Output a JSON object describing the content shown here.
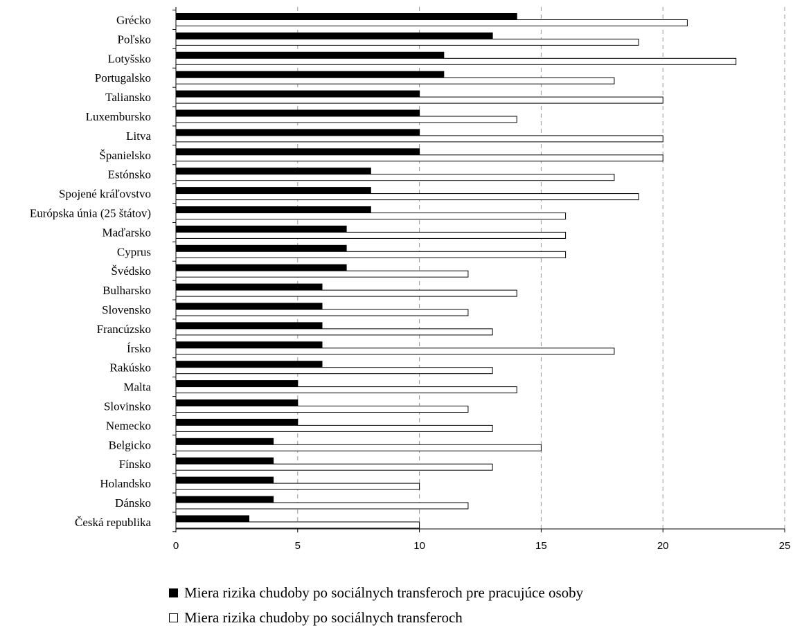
{
  "chart_data": {
    "type": "bar",
    "orientation": "horizontal",
    "categories": [
      "Grécko",
      "Poľsko",
      "Lotyšsko",
      "Portugalsko",
      "Taliansko",
      "Luxembursko",
      "Litva",
      "Španielsko",
      "Estónsko",
      "Spojené kráľovstvo",
      "Európska únia (25 štátov)",
      "Maďarsko",
      "Cyprus",
      "Švédsko",
      "Bulharsko",
      "Slovensko",
      "Francúzsko",
      "Írsko",
      "Rakúsko",
      "Malta",
      "Slovinsko",
      "Nemecko",
      "Belgicko",
      "Fínsko",
      "Holandsko",
      "Dánsko",
      "Česká republika"
    ],
    "series": [
      {
        "name": "Miera rizika chudoby po sociálnych transferoch pre pracujúce osoby",
        "color": "#000000",
        "values": [
          14,
          13,
          11,
          11,
          10,
          10,
          10,
          10,
          8,
          8,
          8,
          7,
          7,
          7,
          6,
          6,
          6,
          6,
          6,
          5,
          5,
          5,
          4,
          4,
          4,
          4,
          3
        ]
      },
      {
        "name": "Miera rizika chudoby po sociálnych transferoch",
        "color": "#ffffff",
        "values": [
          21,
          19,
          23,
          18,
          20,
          14,
          20,
          20,
          18,
          19,
          16,
          16,
          16,
          12,
          14,
          12,
          13,
          18,
          13,
          14,
          12,
          13,
          15,
          13,
          10,
          12,
          10
        ]
      }
    ],
    "xlim": [
      0,
      25
    ],
    "xticks": [
      "0",
      "5",
      "10",
      "15",
      "20",
      "25"
    ],
    "grid": "vertical dashed",
    "legend_position": "bottom",
    "legend": {
      "items": [
        {
          "symbol": "■",
          "label": "Miera rizika chudoby po sociálnych transferoch pre pracujúce osoby"
        },
        {
          "symbol": "□",
          "label": "Miera rizika chudoby po sociálnych transferoch"
        }
      ]
    }
  }
}
